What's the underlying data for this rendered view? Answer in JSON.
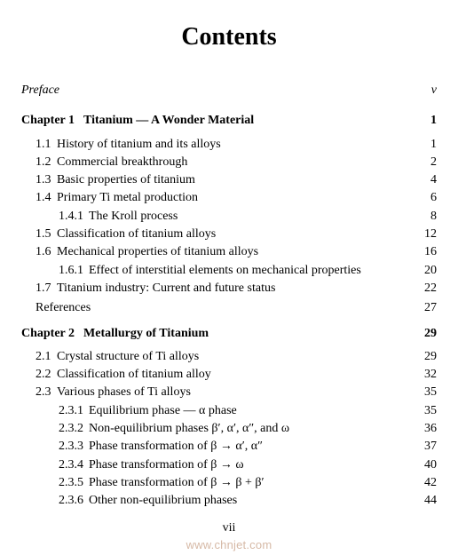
{
  "title": "Contents",
  "preface": {
    "label": "Preface",
    "page": "v"
  },
  "chapter1": {
    "heading_prefix": "Chapter 1",
    "heading_title": "Titanium — A Wonder Material",
    "page": "1",
    "items": [
      {
        "n": "1.1",
        "t": "History of titanium and its alloys",
        "p": "1"
      },
      {
        "n": "1.2",
        "t": "Commercial breakthrough",
        "p": "2"
      },
      {
        "n": "1.3",
        "t": "Basic properties of titanium",
        "p": "4"
      },
      {
        "n": "1.4",
        "t": "Primary Ti metal production",
        "p": "6"
      },
      {
        "n": "1.4.1",
        "t": "The Kroll process",
        "p": "8",
        "lvl": 2
      },
      {
        "n": "1.5",
        "t": "Classification of titanium alloys",
        "p": "12"
      },
      {
        "n": "1.6",
        "t": "Mechanical properties of titanium alloys",
        "p": "16"
      },
      {
        "n": "1.6.1",
        "t": "Effect of interstitial elements on mechanical properties",
        "p": "20",
        "lvl": 2
      },
      {
        "n": "1.7",
        "t": "Titanium industry: Current and future status",
        "p": "22"
      }
    ],
    "references": {
      "label": "References",
      "page": "27"
    }
  },
  "chapter2": {
    "heading_prefix": "Chapter 2",
    "heading_title": "Metallurgy of Titanium",
    "page": "29",
    "items": [
      {
        "n": "2.1",
        "t": "Crystal structure of Ti alloys",
        "p": "29"
      },
      {
        "n": "2.2",
        "t": "Classification of titanium alloy",
        "p": "32"
      },
      {
        "n": "2.3",
        "t": "Various phases of Ti alloys",
        "p": "35"
      },
      {
        "n": "2.3.1",
        "t": "Equilibrium phase — α phase",
        "p": "35",
        "lvl": 2
      },
      {
        "n": "2.3.2",
        "t": "Non-equilibrium phases β′, α′, α″, and ω",
        "p": "36",
        "lvl": 2
      },
      {
        "n": "2.3.3",
        "t": "Phase transformation of β → α′, α″",
        "p": "37",
        "lvl": 2
      },
      {
        "n": "2.3.4",
        "t": "Phase transformation of β → ω",
        "p": "40",
        "lvl": 2
      },
      {
        "n": "2.3.5",
        "t": "Phase transformation of β → β + β′",
        "p": "42",
        "lvl": 2
      },
      {
        "n": "2.3.6",
        "t": "Other non-equilibrium phases",
        "p": "44",
        "lvl": 2
      }
    ]
  },
  "folio": "vii",
  "watermark": "www.chnjet.com"
}
